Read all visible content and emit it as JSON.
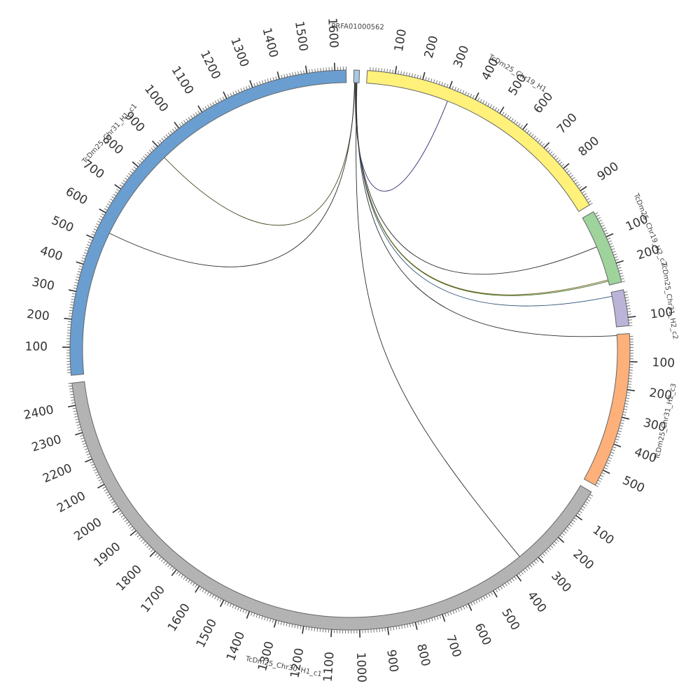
{
  "chart_data": {
    "type": "chord",
    "title": "",
    "start_angle_deg": 0,
    "gap_deg": 1.6,
    "tick_major": 100,
    "tick_minor": 10,
    "segments": [
      {
        "name": "PRFA01000562",
        "length": 20,
        "color": "#a6c8e3"
      },
      {
        "name": "TcDm25_Chr19_H1",
        "length": 960,
        "color": "#fff17a"
      },
      {
        "name": "TcDm25_Chr19_H2_c2",
        "length": 270,
        "color": "#9fd39c"
      },
      {
        "name": "TcDm25_Chr31_H2_c2",
        "length": 130,
        "color": "#bbb3d8"
      },
      {
        "name": "TcDm25_Chr31_H2_c3",
        "length": 560,
        "color": "#fdb07a"
      },
      {
        "name": "TcDm25_Chr30_H1_c1",
        "length": 2480,
        "color": "#b3b3b3"
      },
      {
        "name": "TcDm25_Chr31_H1_c1",
        "length": 1640,
        "color": "#6a9ed0"
      }
    ],
    "links": [
      {
        "from": "PRFA01000562",
        "from_pos": 6,
        "to": "TcDm25_Chr19_H1",
        "to_pos": 310,
        "color": "#3a2f6e"
      },
      {
        "from": "PRFA01000562",
        "from_pos": 7,
        "to": "TcDm25_Chr19_H2_c2",
        "to_pos": 120,
        "color": "#2b2b2b"
      },
      {
        "from": "PRFA01000562",
        "from_pos": 8,
        "to": "TcDm25_Chr19_H2_c2",
        "to_pos": 255,
        "color": "#3a6b1a"
      },
      {
        "from": "PRFA01000562",
        "from_pos": 9,
        "to": "TcDm25_Chr19_H2_c2",
        "to_pos": 250,
        "color": "#6b5a1a"
      },
      {
        "from": "PRFA01000562",
        "from_pos": 10,
        "to": "TcDm25_Chr31_H2_c2",
        "to_pos": 15,
        "color": "#2b4e7a"
      },
      {
        "from": "PRFA01000562",
        "from_pos": 11,
        "to": "TcDm25_Chr31_H2_c3",
        "to_pos": 5,
        "color": "#2b2b2b"
      },
      {
        "from": "PRFA01000562",
        "from_pos": 12,
        "to": "TcDm25_Chr30_H1_c1",
        "to_pos": 350,
        "color": "#2b2b2b"
      },
      {
        "from": "PRFA01000562",
        "from_pos": 4,
        "to": "TcDm25_Chr31_H1_c1",
        "to_pos": 890,
        "color": "#4a4a2a"
      },
      {
        "from": "PRFA01000562",
        "from_pos": 3,
        "to": "TcDm25_Chr31_H1_c1",
        "to_pos": 540,
        "color": "#2b2b2b"
      }
    ]
  }
}
